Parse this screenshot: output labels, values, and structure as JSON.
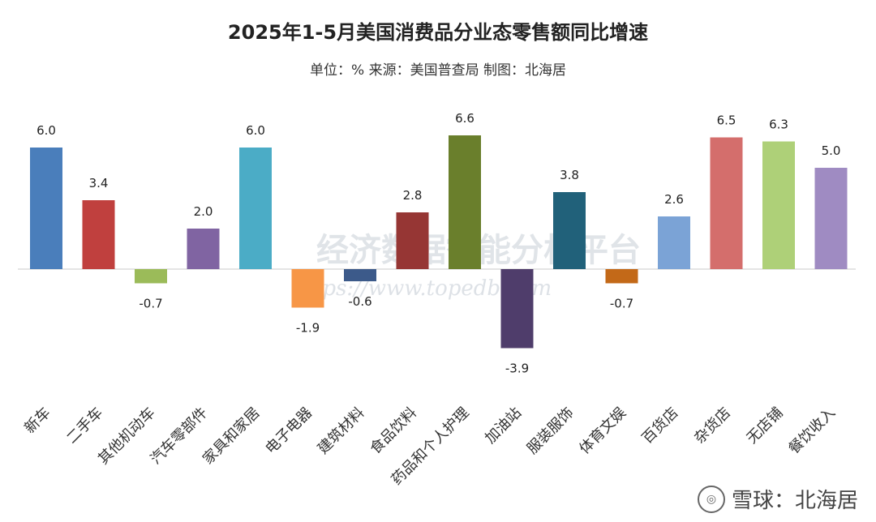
{
  "header": {
    "title": "2025年1-5月美国消费品分业态零售额同比增速",
    "subtitle": "单位：% 来源：美国普查局 制图：北海居"
  },
  "watermark": {
    "main_text": "经济数据智能分析平台",
    "url_text": "https://www.topedb.com",
    "social_text": "雪球：北海居",
    "social_icon": "snowball-icon"
  },
  "chart_data": {
    "type": "bar",
    "title": "2025年1-5月美国消费品分业态零售额同比增速",
    "subtitle": "单位：% 来源：美国普查局 制图：北海居",
    "xlabel": "",
    "ylabel": "",
    "ylim": [
      -5,
      8
    ],
    "grid": false,
    "categories": [
      "新车",
      "二手车",
      "其他机动车",
      "汽车零部件",
      "家具和家居",
      "电子电器",
      "建筑材料",
      "食品饮料",
      "药品和个人护理",
      "加油站",
      "服装服饰",
      "体育文娱",
      "百货店",
      "杂货店",
      "无店铺",
      "餐饮收入"
    ],
    "values": [
      6.0,
      3.4,
      -0.7,
      2.0,
      6.0,
      -1.9,
      -0.6,
      2.8,
      6.6,
      -3.9,
      3.8,
      -0.7,
      2.6,
      6.5,
      6.3,
      5.0
    ],
    "value_labels": [
      "6.0",
      "3.4",
      "-0.7",
      "2.0",
      "6.0",
      "-1.9",
      "-0.6",
      "2.8",
      "6.6",
      "-3.9",
      "3.8",
      "-0.7",
      "2.6",
      "6.5",
      "6.3",
      "5.0"
    ],
    "colors": [
      "#4a7ebb",
      "#c0403e",
      "#9bbb59",
      "#8064a2",
      "#4bacc6",
      "#f79646",
      "#3c5a8a",
      "#963634",
      "#6a7f2c",
      "#4f3d6b",
      "#21617a",
      "#c36918",
      "#7ba3d6",
      "#d46e6c",
      "#aed078",
      "#9f8bc2"
    ]
  }
}
